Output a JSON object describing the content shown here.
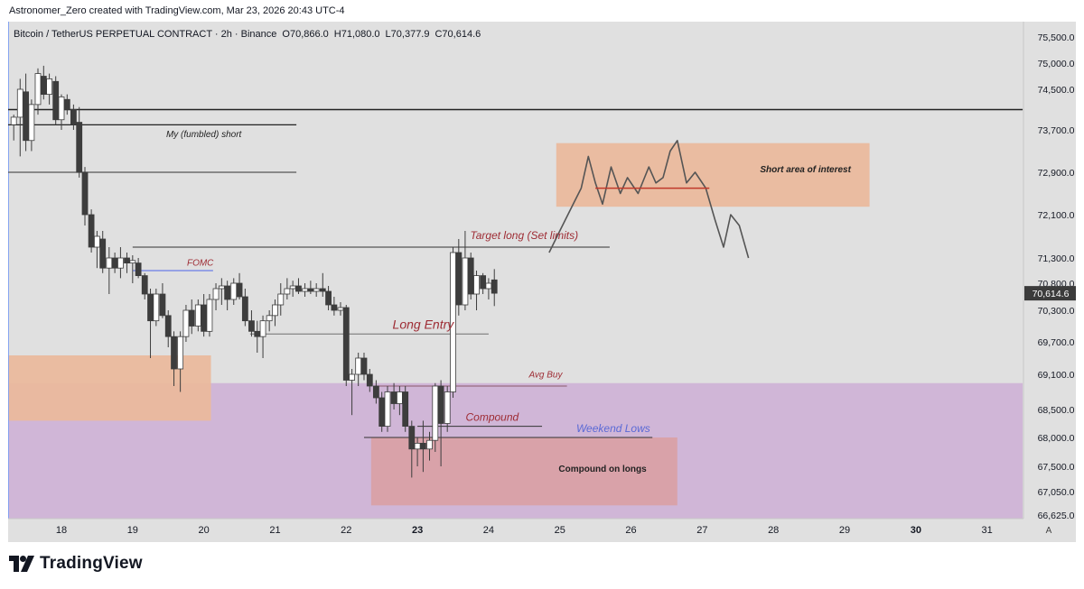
{
  "attribution": "Astronomer_Zero created with TradingView.com, Mar 23, 2026 20:43 UTC-4",
  "brand": {
    "name": "TradingView",
    "icon": "tradingview-logo-icon"
  },
  "colors": {
    "background": "#e0e0e0",
    "up": "#ffffff",
    "down": "#3d3d3d",
    "wick": "#3d3d3d",
    "price_tag_bg": "#3b3b3b",
    "purple_zone": "#cfb3d6",
    "orange_zone": "#eab99d",
    "red_zone": "#d9a1a6",
    "annotation_red": "#9e2c34",
    "annotation_blue": "#5b6ad6",
    "vertical_marker": "#7a9cf2"
  },
  "chart_data": {
    "type": "candlestick",
    "title": "Bitcoin / TetherUS PERPETUAL CONTRACT · 2h · Binance",
    "ohlc": {
      "open": "O70,866.0",
      "high": "H71,080.0",
      "low": "L70,377.9",
      "close": "C70,614.6"
    },
    "last_price": 70614.6,
    "last_price_label": "70,614.6",
    "y_axis": {
      "tick_labels": [
        "75,500.0",
        "75,000.0",
        "74,500.0",
        "73,700.0",
        "72,900.0",
        "72,100.0",
        "71,300.0",
        "70,800.0",
        "70,300.0",
        "69,700.0",
        "69,100.0",
        "68,500.0",
        "68,000.0",
        "67,500.0",
        "67,050.0",
        "66,625.0"
      ],
      "tick_values": [
        75500,
        75000,
        74500,
        73700,
        72900,
        72100,
        71300,
        70800,
        70300,
        69700,
        69100,
        68500,
        68000,
        67500,
        67050,
        66625
      ]
    },
    "x_axis": {
      "tick_labels": [
        "18",
        "19",
        "20",
        "21",
        "22",
        "23",
        "24",
        "25",
        "26",
        "27",
        "28",
        "29",
        "30",
        "31"
      ],
      "tick_days": [
        18,
        19,
        20,
        21,
        22,
        23,
        24,
        25,
        26,
        27,
        28,
        29,
        30,
        31
      ],
      "bold_labels": [
        "23",
        "30"
      ],
      "corner_label": "A"
    },
    "candles": [
      {
        "t": 17.33,
        "o": 73800,
        "h": 74000,
        "l": 73500,
        "c": 73950
      },
      {
        "t": 17.42,
        "o": 73950,
        "h": 74700,
        "l": 73200,
        "c": 74500
      },
      {
        "t": 17.5,
        "o": 74450,
        "h": 74800,
        "l": 73300,
        "c": 73500
      },
      {
        "t": 17.58,
        "o": 73500,
        "h": 74300,
        "l": 73300,
        "c": 74200
      },
      {
        "t": 17.67,
        "o": 74200,
        "h": 74900,
        "l": 74000,
        "c": 74800
      },
      {
        "t": 17.75,
        "o": 74750,
        "h": 74950,
        "l": 74300,
        "c": 74400
      },
      {
        "t": 17.83,
        "o": 74400,
        "h": 74800,
        "l": 74200,
        "c": 74700
      },
      {
        "t": 17.92,
        "o": 74650,
        "h": 74750,
        "l": 73800,
        "c": 73900
      },
      {
        "t": 18.0,
        "o": 73900,
        "h": 74400,
        "l": 73700,
        "c": 74350
      },
      {
        "t": 18.08,
        "o": 74300,
        "h": 74400,
        "l": 74000,
        "c": 74100
      },
      {
        "t": 18.17,
        "o": 74100,
        "h": 74200,
        "l": 73700,
        "c": 73800
      },
      {
        "t": 18.25,
        "o": 73850,
        "h": 74150,
        "l": 72800,
        "c": 72900
      },
      {
        "t": 18.33,
        "o": 72900,
        "h": 73000,
        "l": 71900,
        "c": 72100
      },
      {
        "t": 18.42,
        "o": 72100,
        "h": 72200,
        "l": 71400,
        "c": 71500
      },
      {
        "t": 18.5,
        "o": 71500,
        "h": 71800,
        "l": 71100,
        "c": 71700
      },
      {
        "t": 18.58,
        "o": 71650,
        "h": 71800,
        "l": 71000,
        "c": 71100
      },
      {
        "t": 18.67,
        "o": 71100,
        "h": 71500,
        "l": 70600,
        "c": 71300
      },
      {
        "t": 18.75,
        "o": 71300,
        "h": 71400,
        "l": 71000,
        "c": 71100
      },
      {
        "t": 18.83,
        "o": 71100,
        "h": 71500,
        "l": 70900,
        "c": 71300
      },
      {
        "t": 18.92,
        "o": 71300,
        "h": 71400,
        "l": 71000,
        "c": 71200
      },
      {
        "t": 19.0,
        "o": 71200,
        "h": 71350,
        "l": 70800,
        "c": 71250
      },
      {
        "t": 19.08,
        "o": 71200,
        "h": 71300,
        "l": 70900,
        "c": 70950
      },
      {
        "t": 19.17,
        "o": 70950,
        "h": 71000,
        "l": 70500,
        "c": 70600
      },
      {
        "t": 19.25,
        "o": 70600,
        "h": 70700,
        "l": 69400,
        "c": 70100
      },
      {
        "t": 19.33,
        "o": 70100,
        "h": 70700,
        "l": 70000,
        "c": 70600
      },
      {
        "t": 19.42,
        "o": 70600,
        "h": 70800,
        "l": 70150,
        "c": 70200
      },
      {
        "t": 19.5,
        "o": 70200,
        "h": 70300,
        "l": 69600,
        "c": 69800
      },
      {
        "t": 19.58,
        "o": 69800,
        "h": 69900,
        "l": 68900,
        "c": 69200
      },
      {
        "t": 19.67,
        "o": 69200,
        "h": 69900,
        "l": 68800,
        "c": 69800
      },
      {
        "t": 19.75,
        "o": 69800,
        "h": 70400,
        "l": 69700,
        "c": 70300
      },
      {
        "t": 19.83,
        "o": 70300,
        "h": 70500,
        "l": 69850,
        "c": 70000
      },
      {
        "t": 19.92,
        "o": 70000,
        "h": 70500,
        "l": 69900,
        "c": 70400
      },
      {
        "t": 20.0,
        "o": 70400,
        "h": 70600,
        "l": 69800,
        "c": 69900
      },
      {
        "t": 20.08,
        "o": 69900,
        "h": 70600,
        "l": 69800,
        "c": 70500
      },
      {
        "t": 20.17,
        "o": 70500,
        "h": 70800,
        "l": 70300,
        "c": 70700
      },
      {
        "t": 20.25,
        "o": 70700,
        "h": 70900,
        "l": 70400,
        "c": 70750
      },
      {
        "t": 20.33,
        "o": 70750,
        "h": 70850,
        "l": 70300,
        "c": 70500
      },
      {
        "t": 20.42,
        "o": 70500,
        "h": 70900,
        "l": 70400,
        "c": 70800
      },
      {
        "t": 20.5,
        "o": 70800,
        "h": 71000,
        "l": 70500,
        "c": 70550
      },
      {
        "t": 20.58,
        "o": 70550,
        "h": 70700,
        "l": 70000,
        "c": 70100
      },
      {
        "t": 20.67,
        "o": 70100,
        "h": 70300,
        "l": 69800,
        "c": 69900
      },
      {
        "t": 20.75,
        "o": 69900,
        "h": 70100,
        "l": 69500,
        "c": 69800
      },
      {
        "t": 20.83,
        "o": 69800,
        "h": 70200,
        "l": 69400,
        "c": 70100
      },
      {
        "t": 20.92,
        "o": 70100,
        "h": 70300,
        "l": 69900,
        "c": 70200
      },
      {
        "t": 21.0,
        "o": 70200,
        "h": 70500,
        "l": 70000,
        "c": 70400
      },
      {
        "t": 21.08,
        "o": 70400,
        "h": 70800,
        "l": 70200,
        "c": 70600
      },
      {
        "t": 21.17,
        "o": 70600,
        "h": 70900,
        "l": 70500,
        "c": 70700
      },
      {
        "t": 21.25,
        "o": 70700,
        "h": 70850,
        "l": 70550,
        "c": 70750
      },
      {
        "t": 21.33,
        "o": 70750,
        "h": 70900,
        "l": 70600,
        "c": 70650
      },
      {
        "t": 21.42,
        "o": 70650,
        "h": 70800,
        "l": 70550,
        "c": 70700
      },
      {
        "t": 21.5,
        "o": 70700,
        "h": 70850,
        "l": 70600,
        "c": 70650
      },
      {
        "t": 21.58,
        "o": 70650,
        "h": 70800,
        "l": 70550,
        "c": 70700
      },
      {
        "t": 21.67,
        "o": 70700,
        "h": 71000,
        "l": 70550,
        "c": 70650
      },
      {
        "t": 21.75,
        "o": 70650,
        "h": 70750,
        "l": 70300,
        "c": 70400
      },
      {
        "t": 21.83,
        "o": 70400,
        "h": 70550,
        "l": 70200,
        "c": 70300
      },
      {
        "t": 21.92,
        "o": 70300,
        "h": 70450,
        "l": 70200,
        "c": 70350
      },
      {
        "t": 22.0,
        "o": 70350,
        "h": 70400,
        "l": 68900,
        "c": 69000
      },
      {
        "t": 22.08,
        "o": 69000,
        "h": 69200,
        "l": 68400,
        "c": 69100
      },
      {
        "t": 22.17,
        "o": 69100,
        "h": 69500,
        "l": 68900,
        "c": 69400
      },
      {
        "t": 22.25,
        "o": 69400,
        "h": 69500,
        "l": 69000,
        "c": 69100
      },
      {
        "t": 22.33,
        "o": 69100,
        "h": 69200,
        "l": 68800,
        "c": 68900
      },
      {
        "t": 22.42,
        "o": 68900,
        "h": 69000,
        "l": 68600,
        "c": 68700
      },
      {
        "t": 22.5,
        "o": 68700,
        "h": 68800,
        "l": 68100,
        "c": 68200
      },
      {
        "t": 22.58,
        "o": 68200,
        "h": 68900,
        "l": 68100,
        "c": 68800
      },
      {
        "t": 22.67,
        "o": 68800,
        "h": 68950,
        "l": 68500,
        "c": 68600
      },
      {
        "t": 22.75,
        "o": 68600,
        "h": 68900,
        "l": 68400,
        "c": 68800
      },
      {
        "t": 22.83,
        "o": 68800,
        "h": 68900,
        "l": 68100,
        "c": 68200
      },
      {
        "t": 22.92,
        "o": 68200,
        "h": 68300,
        "l": 67300,
        "c": 67800
      },
      {
        "t": 23.0,
        "o": 67800,
        "h": 68000,
        "l": 67500,
        "c": 67900
      },
      {
        "t": 23.08,
        "o": 67900,
        "h": 68300,
        "l": 67400,
        "c": 67800
      },
      {
        "t": 23.17,
        "o": 67800,
        "h": 68100,
        "l": 67600,
        "c": 67950
      },
      {
        "t": 23.25,
        "o": 67950,
        "h": 68950,
        "l": 67750,
        "c": 68900
      },
      {
        "t": 23.33,
        "o": 68900,
        "h": 69000,
        "l": 67500,
        "c": 68250
      },
      {
        "t": 23.42,
        "o": 68250,
        "h": 68900,
        "l": 68100,
        "c": 68800
      },
      {
        "t": 23.5,
        "o": 68800,
        "h": 71500,
        "l": 68700,
        "c": 71400
      },
      {
        "t": 23.58,
        "o": 71400,
        "h": 71650,
        "l": 70200,
        "c": 70400
      },
      {
        "t": 23.67,
        "o": 70400,
        "h": 71800,
        "l": 70300,
        "c": 71300
      },
      {
        "t": 23.75,
        "o": 71300,
        "h": 71400,
        "l": 70500,
        "c": 70600
      },
      {
        "t": 23.83,
        "o": 70600,
        "h": 71050,
        "l": 70300,
        "c": 70950
      },
      {
        "t": 23.92,
        "o": 70950,
        "h": 71000,
        "l": 70600,
        "c": 70700
      },
      {
        "t": 24.0,
        "o": 70700,
        "h": 70900,
        "l": 70500,
        "c": 70800
      },
      {
        "t": 24.08,
        "o": 70866,
        "h": 71080,
        "l": 70378,
        "c": 70615
      }
    ],
    "horizontal_lines": [
      {
        "name": "resistance-line",
        "price": 74100,
        "t1": 17.0,
        "t2": 31.5,
        "color": "#222222",
        "width": 1.5
      },
      {
        "name": "fumbled-short-line",
        "price": 73800,
        "t1": 17.0,
        "t2": 21.3,
        "color": "#222222",
        "width": 1.2
      },
      {
        "name": "upper-range-line",
        "price": 72900,
        "t1": 17.0,
        "t2": 21.3,
        "color": "#555555",
        "width": 1.2
      },
      {
        "name": "target-long-line",
        "price": 71500,
        "t1": 19.0,
        "t2": 25.7,
        "color": "#555555",
        "width": 1.2
      },
      {
        "name": "fomc-line",
        "price": 71050,
        "t1": 19.0,
        "t2": 20.13,
        "color": "#6a7ee6",
        "width": 1.2
      },
      {
        "name": "long-entry-line",
        "price": 69850,
        "t1": 20.65,
        "t2": 24.0,
        "color": "#6e6e6e",
        "width": 1
      },
      {
        "name": "avg-buy-line",
        "price": 68900,
        "t1": 22.4,
        "t2": 25.1,
        "color": "#8a5a6a",
        "width": 1
      },
      {
        "name": "compound-line",
        "price": 68200,
        "t1": 23.0,
        "t2": 24.75,
        "color": "#333333",
        "width": 1
      },
      {
        "name": "weekend-lows-line",
        "price": 68000,
        "t1": 22.25,
        "t2": 26.3,
        "color": "#333333",
        "width": 1
      }
    ],
    "zones": [
      {
        "name": "purple-accumulation-zone",
        "price_top": 68950,
        "price_bottom": 66550,
        "t1": 17.0,
        "t2": 31.5,
        "color": "#cfb3d6"
      },
      {
        "name": "orange-demand-zone",
        "price_top": 69450,
        "price_bottom": 68300,
        "t1": 17.0,
        "t2": 20.1,
        "color": "#eab99d"
      },
      {
        "name": "compound-on-longs-zone",
        "price_top": 68000,
        "price_bottom": 66800,
        "t1": 22.35,
        "t2": 26.65,
        "color": "#d9a1a6"
      },
      {
        "name": "short-interest-zone",
        "price_top": 73450,
        "price_bottom": 72250,
        "t1": 24.95,
        "t2": 29.35,
        "color": "#eab99d"
      }
    ],
    "projection_path": [
      [
        24.85,
        71400
      ],
      [
        25.0,
        71800
      ],
      [
        25.15,
        72200
      ],
      [
        25.3,
        72600
      ],
      [
        25.4,
        73200
      ],
      [
        25.5,
        72700
      ],
      [
        25.6,
        72300
      ],
      [
        25.72,
        73000
      ],
      [
        25.85,
        72500
      ],
      [
        25.95,
        72800
      ],
      [
        26.1,
        72500
      ],
      [
        26.25,
        73000
      ],
      [
        26.35,
        72700
      ],
      [
        26.45,
        72800
      ],
      [
        26.55,
        73300
      ],
      [
        26.65,
        73500
      ],
      [
        26.78,
        72700
      ],
      [
        26.9,
        72900
      ],
      [
        27.05,
        72600
      ],
      [
        27.18,
        72000
      ],
      [
        27.3,
        71500
      ],
      [
        27.4,
        72100
      ],
      [
        27.52,
        71900
      ],
      [
        27.65,
        71300
      ]
    ],
    "projection_level": {
      "price": 72600,
      "t1": 25.5,
      "t2": 27.1,
      "color": "#c0392b"
    },
    "annotations": [
      {
        "name": "fumbled-short-label",
        "text": "My (fumbled) short",
        "price": 73560,
        "t": 20.0,
        "color": "#222222",
        "size": 10,
        "italic": true,
        "bold": false,
        "anchor": "middle"
      },
      {
        "name": "short-area-label",
        "text": "Short area of interest",
        "price": 72900,
        "t": 28.45,
        "color": "#222222",
        "size": 10,
        "italic": true,
        "bold": true,
        "anchor": "middle"
      },
      {
        "name": "target-long-label",
        "text": "Target long (Set limits)",
        "price": 71650,
        "t": 24.5,
        "color": "#9e2c34",
        "size": 12,
        "italic": true,
        "bold": false,
        "anchor": "middle"
      },
      {
        "name": "fomc-label",
        "text": "FOMC",
        "price": 71150,
        "t": 19.95,
        "color": "#9e2c34",
        "size": 10,
        "italic": true,
        "bold": false,
        "anchor": "middle"
      },
      {
        "name": "long-entry-label",
        "text": "Long Entry",
        "price": 69950,
        "t": 23.08,
        "color": "#9e2c34",
        "size": 14,
        "italic": true,
        "bold": false,
        "anchor": "middle"
      },
      {
        "name": "avg-buy-label",
        "text": "Avg Buy",
        "price": 69050,
        "t": 24.8,
        "color": "#9e2c34",
        "size": 10,
        "italic": true,
        "bold": false,
        "anchor": "middle"
      },
      {
        "name": "compound-label",
        "text": "Compound",
        "price": 68300,
        "t": 24.05,
        "color": "#9e2c34",
        "size": 12,
        "italic": true,
        "bold": false,
        "anchor": "middle"
      },
      {
        "name": "weekend-lows-label",
        "text": "Weekend Lows",
        "price": 68100,
        "t": 25.75,
        "color": "#5b6ad6",
        "size": 12,
        "italic": true,
        "bold": false,
        "anchor": "middle"
      },
      {
        "name": "compound-on-longs-label",
        "text": "Compound on longs",
        "price": 67400,
        "t": 25.6,
        "color": "#222222",
        "size": 10,
        "italic": false,
        "bold": true,
        "anchor": "middle"
      }
    ],
    "vertical_marker": {
      "t": 17.25,
      "color": "#7a9cf2"
    }
  }
}
